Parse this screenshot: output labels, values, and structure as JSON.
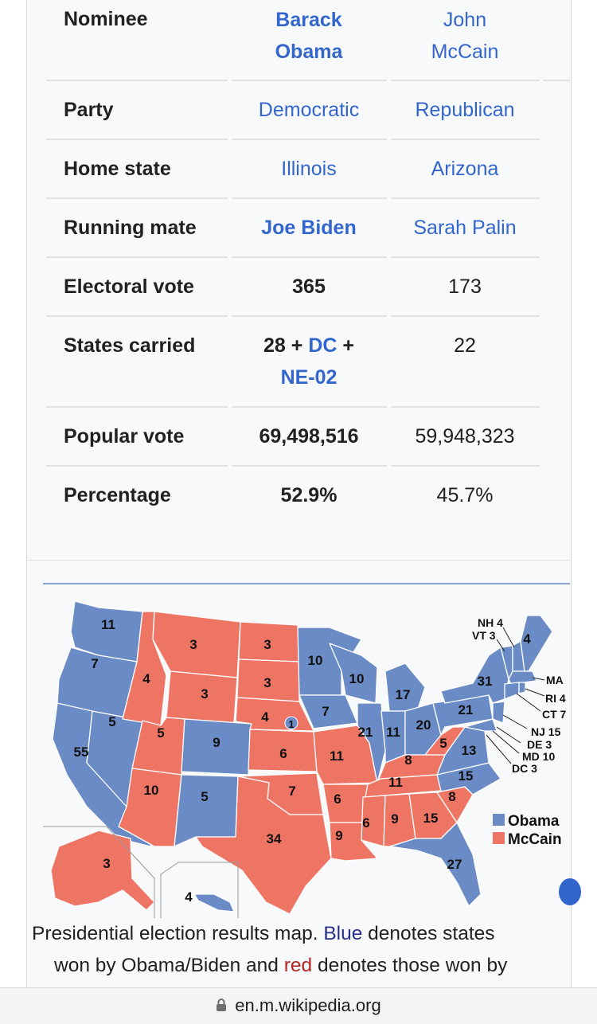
{
  "infobox": {
    "rows": [
      {
        "label": "Nominee",
        "obama": "Barack Obama",
        "mccain": "John McCain"
      },
      {
        "label": "Party",
        "obama": "Democratic",
        "mccain": "Republican"
      },
      {
        "label": "Home state",
        "obama": "Illinois",
        "mccain": "Arizona"
      },
      {
        "label": "Running mate",
        "obama": "Joe Biden",
        "mccain": "Sarah Palin"
      },
      {
        "label": "Electoral vote",
        "obama": "365",
        "mccain": "173"
      },
      {
        "label": "States carried",
        "obama_a": "28 + ",
        "obama_dc": "DC",
        "obama_b": " + ",
        "obama_ne": "NE-02",
        "mccain": "22"
      },
      {
        "label": "Popular vote",
        "obama": "69,498,516",
        "mccain": "59,948,323"
      },
      {
        "label": "Percentage",
        "obama": "52.9%",
        "mccain": "45.7%"
      }
    ],
    "nominee_obama_line1": "Barack",
    "nominee_obama_line2": "Obama",
    "nominee_mccain_line1": "John",
    "nominee_mccain_line2": "McCain"
  },
  "map": {
    "colors": {
      "obama": "#6a8bc6",
      "mccain": "#ee7464"
    },
    "legend": [
      {
        "label": "Obama"
      },
      {
        "label": "McCain"
      }
    ],
    "labels": {
      "wa": "11",
      "or": "7",
      "ca": "55",
      "nv": "5",
      "id": "4",
      "mt": "3",
      "wy": "3",
      "ut": "5",
      "co": "9",
      "az": "10",
      "nm": "5",
      "nd": "3",
      "sd": "3",
      "ne": "4",
      "ne2": "1",
      "ks": "6",
      "ok": "7",
      "tx": "34",
      "mn": "10",
      "ia": "7",
      "mo": "11",
      "ar": "6",
      "la": "9",
      "wi": "10",
      "il": "21",
      "mi": "17",
      "in": "11",
      "oh": "20",
      "ky": "8",
      "tn": "11",
      "ms": "6",
      "al": "9",
      "ga": "15",
      "fl": "27",
      "sc": "8",
      "nc": "15",
      "va": "13",
      "wv": "5",
      "pa": "21",
      "ny": "31",
      "me": "4",
      "ak": "3",
      "hi": "4",
      "nh": "NH 4",
      "vt": "VT 3",
      "ma": "MA",
      "ri": "RI 4",
      "ct": "CT 7",
      "nj": "NJ 15",
      "de": "DE 3",
      "md": "MD 10",
      "dc": "DC 3"
    }
  },
  "caption": {
    "part1": "Presidential election results map. ",
    "blue": "Blue",
    "part2": " denotes states",
    "part3": "won by Obama/Biden and ",
    "red": "red",
    "part4": " denotes those won by"
  },
  "urlbar": {
    "url": "en.m.wikipedia.org"
  }
}
